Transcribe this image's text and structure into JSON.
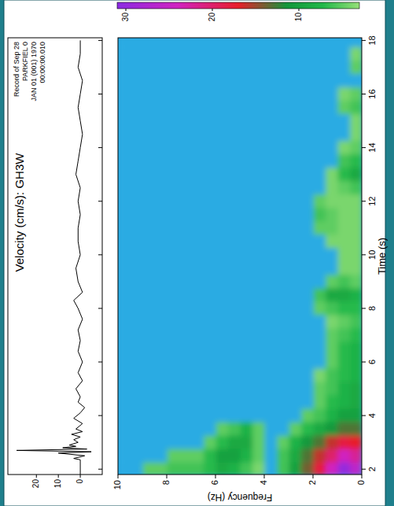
{
  "chart_data": {
    "type": "spectrogram",
    "title": "Velocity (cm/s): GH3W",
    "annotation": [
      "Record of Sep 28",
      "PARKFIEL 0",
      "JAN 01 (001) 1970",
      "00:00:00.010"
    ],
    "trace": {
      "x": [
        1.8,
        2.35,
        2.4,
        2.5,
        2.6,
        2.65,
        2.7,
        2.75,
        2.8,
        2.85,
        2.9,
        3.0,
        3.1,
        3.2,
        3.3,
        3.4,
        3.5,
        3.7,
        3.9,
        4.1,
        4.3,
        4.5,
        4.7,
        5.0,
        5.3,
        5.6,
        6.0,
        6.4,
        6.8,
        7.2,
        7.6,
        8.0,
        8.3,
        8.6,
        9.0,
        9.5,
        10,
        10.5,
        11,
        11.5,
        12,
        12.5,
        13,
        13.5,
        14,
        14.5,
        15,
        15.5,
        16,
        16.5,
        17,
        17.5,
        18
      ],
      "values": [
        0,
        0,
        3,
        -2,
        10,
        -5,
        29,
        -3,
        8,
        2,
        5,
        1,
        3,
        0,
        4,
        -1,
        2,
        -1,
        3,
        0,
        -2,
        1,
        0,
        2,
        -1,
        1,
        -1,
        1,
        0,
        1,
        -1,
        1,
        3,
        -1,
        1,
        2,
        0,
        1,
        1,
        0,
        1,
        0,
        2,
        1,
        0,
        -1,
        0,
        1,
        0,
        -1,
        1,
        0,
        0
      ],
      "xlim": [
        1.8,
        18.1
      ],
      "ylim": [
        -10,
        33
      ],
      "xticks": [
        2,
        4,
        6,
        8,
        10,
        12,
        14,
        16,
        18
      ],
      "yticks": [
        20,
        10,
        0
      ],
      "color": "#000000"
    },
    "x_label": "Time (s)",
    "y_label": "Frequency (Hz)",
    "xlim": [
      1.8,
      18.1
    ],
    "ylim": [
      0,
      10
    ],
    "xticks": [
      2,
      4,
      6,
      8,
      10,
      12,
      14,
      16,
      18
    ],
    "yticks": [
      0,
      2,
      4,
      6,
      8,
      10
    ],
    "x": [
      2,
      2.5,
      3,
      3.5,
      4,
      4.5,
      5,
      5.5,
      6,
      6.5,
      7,
      7.5,
      8,
      8.5,
      9,
      9.5,
      10,
      10.5,
      11,
      11.5,
      12,
      12.5,
      13,
      13.5,
      14,
      14.5,
      15,
      15.5,
      16,
      16.5,
      17,
      17.5,
      18
    ],
    "y": [
      0.25,
      0.75,
      1.25,
      1.75,
      2.25,
      2.75,
      3.25,
      3.75,
      4.25,
      4.75,
      5.25,
      5.75,
      6.25,
      6.75,
      7.25,
      7.75,
      8.25,
      8.75,
      9.25,
      9.75
    ],
    "cells": [
      [
        26,
        22,
        17,
        13,
        10,
        9,
        9,
        8,
        8,
        8,
        7,
        6,
        7,
        8,
        5,
        4,
        4,
        4,
        4,
        4,
        4,
        6,
        9,
        7,
        5,
        4,
        4,
        6,
        5,
        0,
        5,
        4,
        0
      ],
      [
        30,
        24,
        18,
        13,
        10,
        8,
        8,
        7,
        7,
        7,
        6,
        5,
        7,
        9,
        6,
        4,
        4,
        4,
        4,
        4,
        4,
        5,
        7,
        6,
        4,
        0,
        0,
        5,
        4,
        0,
        0,
        0,
        0
      ],
      [
        24,
        20,
        16,
        11,
        8,
        7,
        6,
        6,
        5,
        5,
        5,
        4,
        6,
        9,
        5,
        0,
        0,
        4,
        5,
        5,
        4,
        4,
        4,
        0,
        0,
        0,
        0,
        0,
        0,
        0,
        0,
        0,
        0
      ],
      [
        18,
        16,
        13,
        9,
        6,
        5,
        5,
        4,
        0,
        0,
        0,
        0,
        5,
        6,
        0,
        0,
        0,
        0,
        5,
        6,
        5,
        0,
        0,
        0,
        0,
        0,
        0,
        0,
        0,
        0,
        0,
        0,
        0
      ],
      [
        14,
        13,
        11,
        7,
        5,
        0,
        0,
        0,
        0,
        0,
        0,
        0,
        0,
        0,
        0,
        0,
        0,
        0,
        0,
        0,
        0,
        0,
        0,
        0,
        0,
        0,
        0,
        0,
        0,
        0,
        0,
        0,
        0
      ],
      [
        10,
        9,
        8,
        5,
        0,
        0,
        0,
        0,
        0,
        0,
        0,
        0,
        0,
        0,
        0,
        0,
        0,
        0,
        0,
        0,
        0,
        0,
        0,
        0,
        0,
        0,
        0,
        0,
        0,
        0,
        0,
        0,
        0
      ],
      [
        6,
        6,
        5,
        0,
        0,
        0,
        0,
        0,
        0,
        0,
        0,
        0,
        0,
        0,
        0,
        0,
        0,
        0,
        0,
        0,
        0,
        0,
        0,
        0,
        0,
        0,
        0,
        0,
        0,
        0,
        0,
        0,
        0
      ],
      [
        0,
        0,
        0,
        0,
        0,
        0,
        0,
        0,
        0,
        0,
        0,
        0,
        0,
        0,
        0,
        0,
        0,
        0,
        0,
        0,
        0,
        0,
        0,
        0,
        0,
        0,
        0,
        0,
        0,
        0,
        0,
        0,
        0
      ],
      [
        4,
        5,
        5,
        5,
        0,
        0,
        0,
        0,
        0,
        0,
        0,
        0,
        0,
        0,
        0,
        0,
        0,
        0,
        0,
        0,
        0,
        0,
        0,
        0,
        0,
        0,
        0,
        0,
        0,
        0,
        0,
        0,
        0
      ],
      [
        6,
        8,
        9,
        8,
        0,
        0,
        0,
        0,
        0,
        0,
        0,
        0,
        0,
        0,
        0,
        0,
        0,
        0,
        0,
        0,
        0,
        0,
        0,
        0,
        0,
        0,
        0,
        0,
        0,
        0,
        0,
        0,
        0
      ],
      [
        8,
        10,
        9,
        6,
        0,
        0,
        0,
        0,
        0,
        0,
        0,
        0,
        0,
        0,
        0,
        0,
        0,
        0,
        0,
        0,
        0,
        0,
        0,
        0,
        0,
        0,
        0,
        0,
        0,
        0,
        0,
        0,
        0
      ],
      [
        9,
        10,
        7,
        5,
        0,
        0,
        0,
        0,
        0,
        0,
        0,
        0,
        0,
        0,
        0,
        0,
        0,
        0,
        0,
        0,
        0,
        0,
        0,
        0,
        0,
        0,
        0,
        0,
        0,
        0,
        0,
        0,
        0
      ],
      [
        7,
        7,
        5,
        0,
        0,
        0,
        0,
        0,
        0,
        0,
        0,
        0,
        0,
        0,
        0,
        0,
        0,
        0,
        0,
        0,
        0,
        0,
        0,
        0,
        0,
        0,
        0,
        0,
        0,
        0,
        0,
        0,
        0
      ],
      [
        6,
        5,
        0,
        0,
        0,
        0,
        0,
        0,
        0,
        0,
        0,
        0,
        0,
        0,
        0,
        0,
        0,
        0,
        0,
        0,
        0,
        0,
        0,
        0,
        0,
        0,
        0,
        0,
        0,
        0,
        0,
        0,
        0
      ],
      [
        6,
        5,
        0,
        0,
        0,
        0,
        0,
        0,
        0,
        0,
        0,
        0,
        0,
        0,
        0,
        0,
        0,
        0,
        0,
        0,
        0,
        0,
        0,
        0,
        0,
        0,
        0,
        0,
        0,
        0,
        0,
        0,
        0
      ],
      [
        6,
        5,
        0,
        0,
        0,
        0,
        0,
        0,
        0,
        0,
        0,
        0,
        0,
        0,
        0,
        0,
        0,
        0,
        0,
        0,
        0,
        0,
        0,
        0,
        0,
        0,
        0,
        0,
        0,
        0,
        0,
        0,
        0
      ],
      [
        5,
        0,
        0,
        0,
        0,
        0,
        0,
        0,
        0,
        0,
        0,
        0,
        0,
        0,
        0,
        0,
        0,
        0,
        0,
        0,
        0,
        0,
        0,
        0,
        0,
        0,
        0,
        0,
        0,
        0,
        0,
        0,
        0
      ],
      [
        5,
        0,
        0,
        0,
        0,
        0,
        0,
        0,
        0,
        0,
        0,
        0,
        0,
        0,
        0,
        0,
        0,
        0,
        0,
        0,
        0,
        0,
        0,
        0,
        0,
        0,
        0,
        0,
        0,
        0,
        0,
        0,
        0
      ],
      [
        0,
        0,
        0,
        0,
        0,
        0,
        0,
        0,
        0,
        0,
        0,
        0,
        0,
        0,
        0,
        0,
        0,
        0,
        0,
        0,
        0,
        0,
        0,
        0,
        0,
        0,
        0,
        0,
        0,
        0,
        0,
        0,
        0
      ],
      [
        0,
        0,
        0,
        0,
        0,
        0,
        0,
        0,
        0,
        0,
        0,
        0,
        0,
        0,
        0,
        0,
        0,
        0,
        0,
        0,
        0,
        0,
        0,
        0,
        0,
        0,
        0,
        0,
        0,
        0,
        0,
        0,
        0
      ]
    ],
    "colorbar": {
      "range": [
        3,
        31
      ],
      "ticks": [
        30,
        20,
        10
      ]
    }
  }
}
